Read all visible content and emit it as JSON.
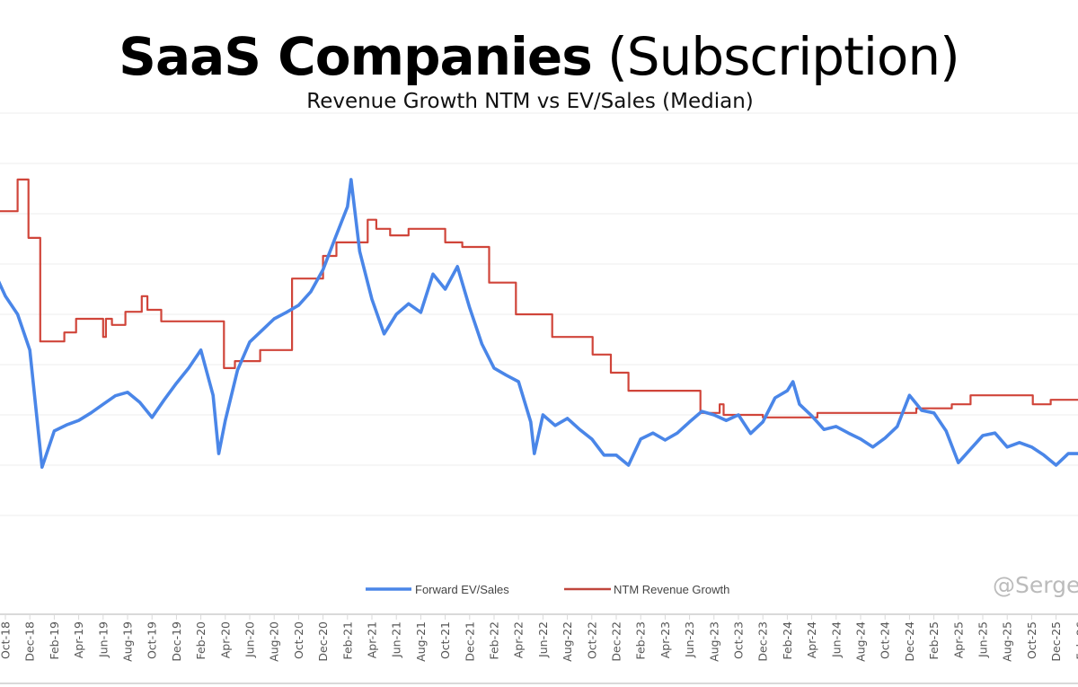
{
  "chart_data": {
    "type": "line",
    "title": "SaaS Companies",
    "title_suffix": "(Subscription)",
    "subtitle": "Revenue Growth NTM vs EV/Sales (Median)",
    "watermark": "@Serge",
    "grid": true,
    "y_axis_labels_visible": false,
    "ylim": [
      0,
      8
    ],
    "legend_position": "bottom",
    "x_tick_labels": [
      "Oct-18",
      "Dec-18",
      "Feb-19",
      "Apr-19",
      "Jun-19",
      "Aug-19",
      "Oct-19",
      "Dec-19",
      "Feb-20",
      "Apr-20",
      "Jun-20",
      "Aug-20",
      "Oct-20",
      "Dec-20",
      "Feb-21",
      "Apr-21",
      "Jun-21",
      "Aug-21",
      "Oct-21",
      "Dec-21",
      "Feb-22",
      "Apr-22",
      "Jun-22",
      "Aug-22",
      "Oct-22",
      "Dec-22",
      "Feb-23",
      "Apr-23",
      "Jun-23",
      "Aug-23",
      "Oct-23",
      "Dec-23",
      "Feb-24",
      "Apr-24",
      "Jun-24",
      "Aug-24",
      "Oct-24",
      "Dec-24",
      "Feb-25",
      "Apr-25",
      "Jun-25",
      "Aug-25",
      "Oct-25",
      "Dec-25",
      "Feb-26"
    ],
    "series": [
      {
        "name": "Forward EV/Sales",
        "color": "#4a86e8",
        "x": [
          "2018-09-01",
          "2018-10-01",
          "2018-11-01",
          "2018-12-01",
          "2019-01-01",
          "2019-02-01",
          "2019-03-01",
          "2019-04-01",
          "2019-05-01",
          "2019-06-01",
          "2019-07-01",
          "2019-08-01",
          "2019-09-01",
          "2019-10-01",
          "2019-11-01",
          "2019-12-01",
          "2020-01-01",
          "2020-02-01",
          "2020-03-01",
          "2020-03-15",
          "2020-04-01",
          "2020-05-01",
          "2020-06-01",
          "2020-07-01",
          "2020-08-01",
          "2020-09-01",
          "2020-10-01",
          "2020-11-01",
          "2020-12-01",
          "2021-01-01",
          "2021-02-01",
          "2021-02-10",
          "2021-03-01",
          "2021-04-01",
          "2021-05-01",
          "2021-06-01",
          "2021-07-01",
          "2021-08-01",
          "2021-09-01",
          "2021-10-01",
          "2021-11-01",
          "2021-12-01",
          "2022-01-01",
          "2022-02-01",
          "2022-03-01",
          "2022-04-01",
          "2022-05-01",
          "2022-05-10",
          "2022-06-01",
          "2022-07-01",
          "2022-08-01",
          "2022-09-01",
          "2022-10-01",
          "2022-11-01",
          "2022-12-01",
          "2023-01-01",
          "2023-02-01",
          "2023-03-01",
          "2023-04-01",
          "2023-05-01",
          "2023-06-01",
          "2023-07-01",
          "2023-08-01",
          "2023-09-01",
          "2023-10-01",
          "2023-11-01",
          "2023-12-01",
          "2024-01-01",
          "2024-02-01",
          "2024-02-15",
          "2024-03-01",
          "2024-04-01",
          "2024-05-01",
          "2024-06-01",
          "2024-07-01",
          "2024-08-01",
          "2024-09-01",
          "2024-10-01",
          "2024-11-01",
          "2024-12-01",
          "2025-01-01",
          "2025-02-01",
          "2025-03-01",
          "2025-04-01",
          "2025-05-01",
          "2025-06-01",
          "2025-07-01",
          "2025-08-01",
          "2025-09-01",
          "2025-10-01",
          "2025-11-01",
          "2025-12-01",
          "2026-01-01",
          "2026-02-01"
        ],
        "values": [
          4.89,
          4.36,
          4.0,
          3.29,
          0.96,
          1.68,
          1.8,
          1.89,
          2.04,
          2.21,
          2.38,
          2.45,
          2.25,
          1.95,
          2.3,
          2.63,
          2.93,
          3.29,
          2.39,
          1.23,
          1.89,
          2.89,
          3.45,
          3.68,
          3.91,
          4.04,
          4.18,
          4.45,
          4.89,
          5.52,
          6.14,
          6.68,
          5.25,
          4.3,
          3.61,
          4.0,
          4.21,
          4.04,
          4.8,
          4.5,
          4.95,
          4.13,
          3.41,
          2.93,
          2.79,
          2.66,
          1.86,
          1.23,
          2.0,
          1.79,
          1.93,
          1.71,
          1.52,
          1.2,
          1.2,
          1.0,
          1.52,
          1.64,
          1.5,
          1.64,
          1.86,
          2.07,
          2.0,
          1.89,
          2.0,
          1.63,
          1.86,
          2.34,
          2.48,
          2.66,
          2.21,
          1.98,
          1.71,
          1.77,
          1.64,
          1.52,
          1.36,
          1.54,
          1.77,
          2.39,
          2.09,
          2.04,
          1.68,
          1.05,
          1.32,
          1.59,
          1.64,
          1.36,
          1.45,
          1.36,
          1.2,
          1.0,
          1.23,
          1.23
        ]
      },
      {
        "name": "NTM Revenue Growth",
        "color": "#d0453a",
        "step": true,
        "x": [
          "2018-09-01",
          "2018-11-01",
          "2018-11-28",
          "2018-12-27",
          "2019-02-26",
          "2019-03-25",
          "2019-06-01",
          "2019-06-08",
          "2019-06-23",
          "2019-07-26",
          "2019-09-06",
          "2019-09-20",
          "2019-10-24",
          "2020-03-28",
          "2020-04-25",
          "2020-06-27",
          "2020-09-15",
          "2020-12-01",
          "2021-01-04",
          "2021-03-21",
          "2021-04-12",
          "2021-05-16",
          "2021-07-01",
          "2021-10-01",
          "2021-11-13",
          "2022-01-19",
          "2022-03-25",
          "2022-06-24",
          "2022-10-03",
          "2022-11-18",
          "2023-01-01",
          "2023-06-28",
          "2023-08-15",
          "2023-08-25",
          "2023-12-01",
          "2024-04-15",
          "2024-12-18",
          "2025-03-15",
          "2025-05-01",
          "2025-10-04",
          "2025-11-18",
          "2026-02-05"
        ],
        "values": [
          6.05,
          6.68,
          5.52,
          3.46,
          3.64,
          3.91,
          3.55,
          3.91,
          3.79,
          4.05,
          4.36,
          4.09,
          3.86,
          2.93,
          3.07,
          3.29,
          4.71,
          5.16,
          5.43,
          5.88,
          5.7,
          5.57,
          5.7,
          5.43,
          5.34,
          4.63,
          4.0,
          3.55,
          3.2,
          2.84,
          2.48,
          2.04,
          2.21,
          2.0,
          1.95,
          2.04,
          2.13,
          2.21,
          2.39,
          2.21,
          2.3,
          2.3
        ]
      }
    ]
  }
}
